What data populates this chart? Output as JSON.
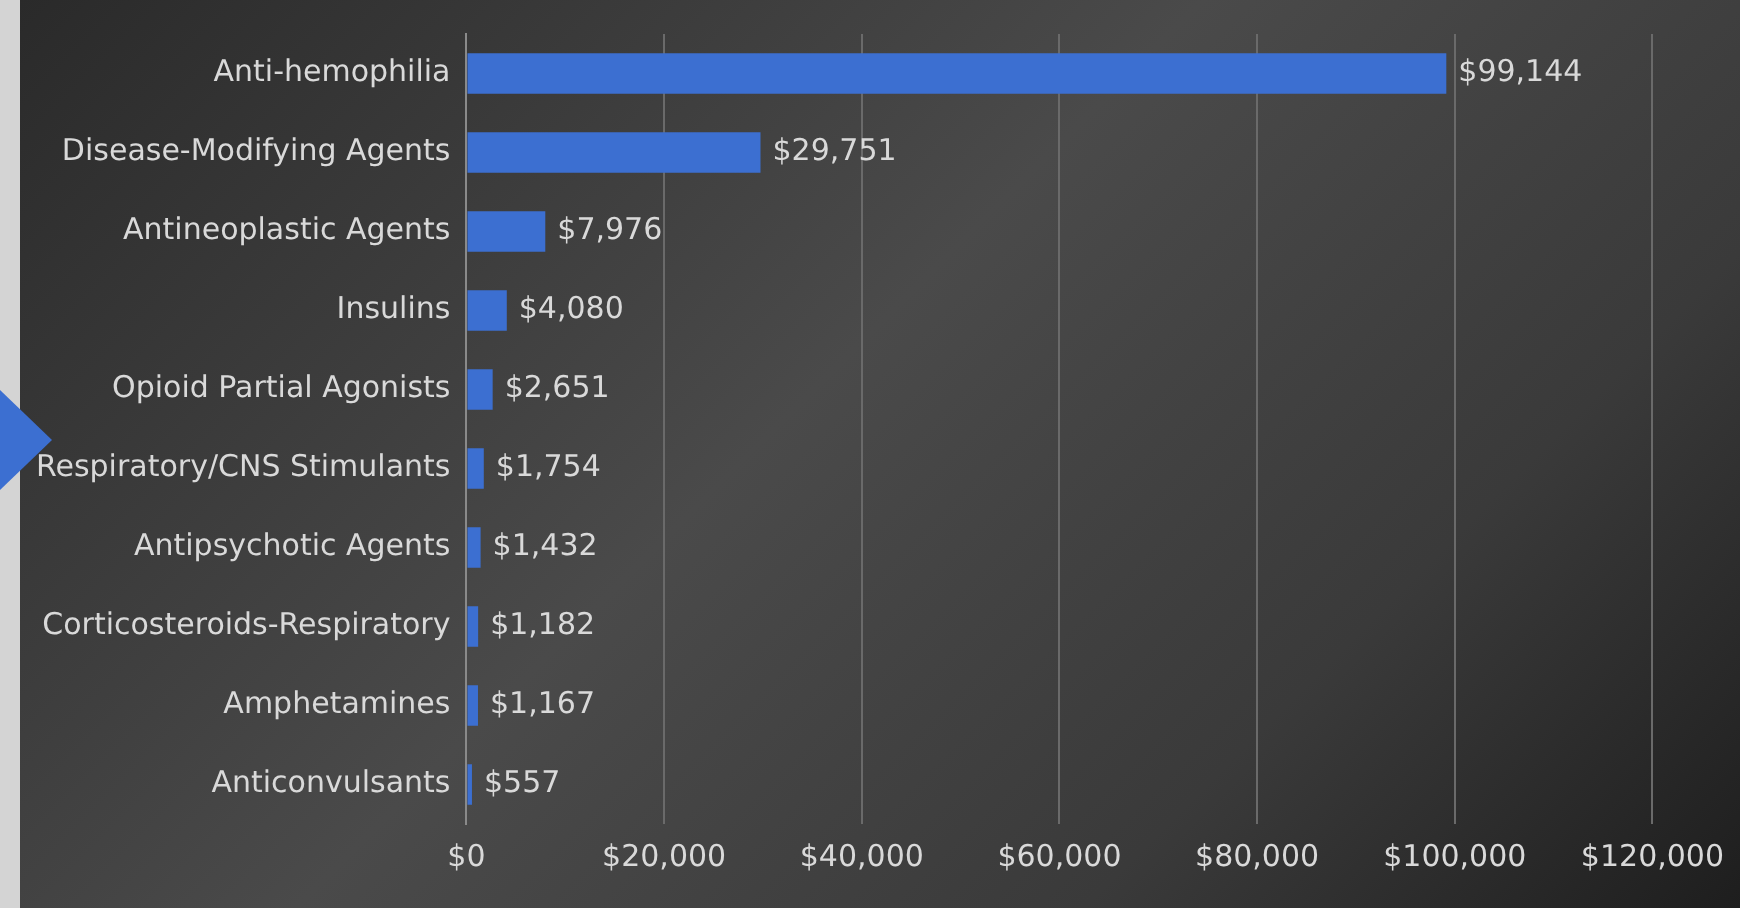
{
  "chart_data": {
    "type": "bar",
    "orientation": "horizontal",
    "categories": [
      "Anti-hemophilia",
      "Disease-Modifying Agents",
      "Antineoplastic Agents",
      "Insulins",
      "Opioid Partial Agonists",
      "Respiratory/CNS Stimulants",
      "Antipsychotic Agents",
      "Corticosteroids-Respiratory",
      "Amphetamines",
      "Anticonvulsants"
    ],
    "values": [
      99144,
      29751,
      7976,
      4080,
      2651,
      1754,
      1432,
      1182,
      1167,
      557
    ],
    "value_labels": [
      "$99,144",
      "$29,751",
      "$7,976",
      "$4,080",
      "$2,651",
      "$1,754",
      "$1,432",
      "$1,182",
      "$1,167",
      "$557"
    ],
    "color": "#3c6fd1",
    "xlim": [
      0,
      120000
    ],
    "xticks": [
      {
        "value": 0,
        "label": "$0"
      },
      {
        "value": 20000,
        "label": "$20,000"
      },
      {
        "value": 40000,
        "label": "$40,000"
      },
      {
        "value": 60000,
        "label": "$60,000"
      },
      {
        "value": 80000,
        "label": "$80,000"
      },
      {
        "value": 100000,
        "label": "$100,000"
      },
      {
        "value": 120000,
        "label": "$120,000"
      }
    ],
    "grid": "x",
    "legend": false
  }
}
